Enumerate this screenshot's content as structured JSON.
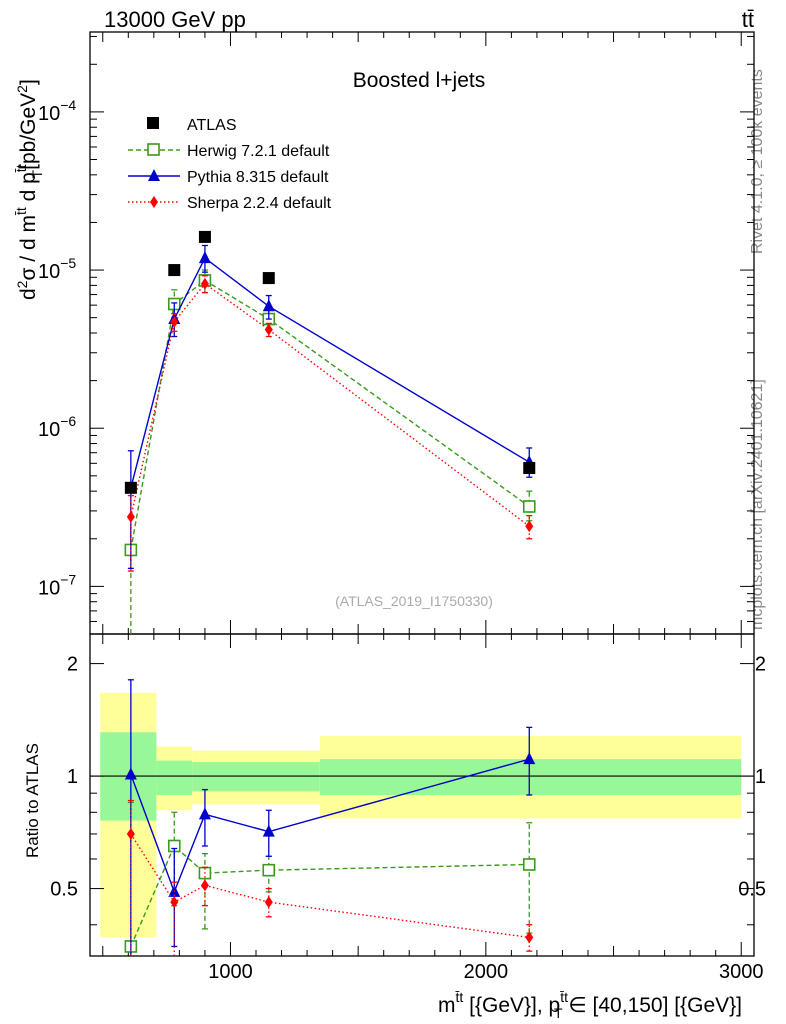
{
  "header": {
    "left": "13000 GeV pp",
    "right": "tt̄"
  },
  "side_labels": {
    "rivet": "Rivet 4.1.0, ≥ 100k events",
    "mcplots": "mcplots.cern.ch [arXiv:2401.10621]"
  },
  "colors": {
    "atlas": "#000000",
    "herwig": "#3a9a1a",
    "pythia": "#0000cc",
    "sherpa": "#ff0000",
    "band_inner": "#98f898",
    "band_outer": "#ffff99"
  },
  "chart_data": [
    {
      "type": "scatter",
      "title": "Boosted l+jets",
      "analysis_tag": "(ATLAS_2019_I1750330)",
      "yscale": "log",
      "ylabel": {
        "a": "d",
        "b": "2",
        "c": "σ / d m",
        "d": "t̄t",
        "e": " d p",
        "f": "t̄t",
        "g": "T",
        "h": "[pb/GeV",
        "i": "2",
        "j": "]"
      },
      "xlim": [
        450,
        3050
      ],
      "ylim": [
        5e-08,
        0.00032
      ],
      "ytick_labels": [
        {
          "value": 1e-07,
          "base": "10",
          "exp": "−7"
        },
        {
          "value": 1e-06,
          "base": "10",
          "exp": "−6"
        },
        {
          "value": 1e-05,
          "base": "10",
          "exp": "−5"
        },
        {
          "value": 0.0001,
          "base": "10",
          "exp": "−4"
        }
      ],
      "legend": [
        "ATLAS",
        "Herwig 7.2.1 default",
        "Pythia 8.315 default",
        "Sherpa 2.2.4 default"
      ],
      "legend_position": "top-left",
      "series": [
        {
          "name": "ATLAS",
          "style": "square",
          "x": [
            610,
            780,
            900,
            1150,
            2170
          ],
          "y": [
            4.2e-07,
            1e-05,
            1.62e-05,
            8.9e-06,
            5.6e-07
          ]
        },
        {
          "name": "Herwig 7.2.1 default",
          "style": "open-square-dashed",
          "x": [
            610,
            780,
            900,
            1150,
            2170
          ],
          "y": [
            1.7e-07,
            6.1e-06,
            8.6e-06,
            4.9e-06,
            3.2e-07
          ],
          "err_low": [
            1.7e-07,
            1.3e-06,
            1.4e-06,
            7e-07,
            6e-08
          ],
          "err_high": [
            2.5e-07,
            1.4e-06,
            1.4e-06,
            7e-07,
            8e-08
          ]
        },
        {
          "name": "Pythia 8.315 default",
          "style": "triangle-solid",
          "x": [
            610,
            780,
            900,
            1150,
            2170
          ],
          "y": [
            4.2e-07,
            4.9e-06,
            1.19e-05,
            5.9e-06,
            6.1e-07
          ],
          "err_low": [
            2.9e-07,
            1.1e-06,
            2.2e-06,
            1e-06,
            1.2e-07
          ],
          "err_high": [
            3e-07,
            1.3e-06,
            2.4e-06,
            1e-06,
            1.4e-07
          ]
        },
        {
          "name": "Sherpa 2.2.4 default",
          "style": "diamond-dotted",
          "x": [
            610,
            780,
            900,
            1150,
            2170
          ],
          "y": [
            2.75e-07,
            4.7e-06,
            8.2e-06,
            4.2e-06,
            2.4e-07
          ],
          "err_low": [
            1.5e-07,
            6e-07,
            1e-06,
            4e-07,
            4e-08
          ],
          "err_high": [
            1e-07,
            6e-07,
            1e-06,
            4e-07,
            4e-08
          ]
        }
      ]
    },
    {
      "type": "scatter",
      "ylabel": "Ratio to ATLAS",
      "xlabel": {
        "a": "m",
        "b": "t̄t",
        "c": " [{GeV}], p",
        "d": "t̄t",
        "e": "T",
        "f": " ∈ [40,150] [{GeV}]"
      },
      "xlim": [
        450,
        3050
      ],
      "ylim": [
        0.33,
        2.4
      ],
      "yscale": "log",
      "xtick_labels": [
        {
          "value": 1000,
          "label": "1000"
        },
        {
          "value": 2000,
          "label": "2000"
        },
        {
          "value": 3000,
          "label": "3000"
        }
      ],
      "ytick_labels": [
        {
          "value": 0.5,
          "label": "0.5"
        },
        {
          "value": 1,
          "label": "1"
        },
        {
          "value": 2,
          "label": "2"
        }
      ],
      "bands": [
        {
          "x0": 490,
          "x1": 710,
          "inner": [
            0.76,
            1.31
          ],
          "outer": [
            0.37,
            1.67
          ]
        },
        {
          "x0": 710,
          "x1": 850,
          "inner": [
            0.89,
            1.1
          ],
          "outer": [
            0.81,
            1.2
          ]
        },
        {
          "x0": 850,
          "x1": 1350,
          "inner": [
            0.91,
            1.09
          ],
          "outer": [
            0.84,
            1.17
          ]
        },
        {
          "x0": 1350,
          "x1": 3000,
          "inner": [
            0.89,
            1.11
          ],
          "outer": [
            0.77,
            1.28
          ]
        }
      ],
      "series": [
        {
          "name": "Herwig 7.2.1 default",
          "x": [
            610,
            780,
            900,
            1150,
            2170
          ],
          "y": [
            0.35,
            0.65,
            0.55,
            0.56,
            0.58
          ],
          "err_low": [
            0.12,
            0.2,
            0.16,
            0.07,
            0.2
          ],
          "err_high": [
            0.5,
            0.15,
            0.07,
            0.05,
            0.17
          ]
        },
        {
          "name": "Pythia 8.315 default",
          "x": [
            610,
            780,
            900,
            1150,
            2170
          ],
          "y": [
            1.01,
            0.49,
            0.79,
            0.71,
            1.11
          ],
          "err_low": [
            0.7,
            0.14,
            0.14,
            0.1,
            0.22
          ],
          "err_high": [
            0.8,
            0.15,
            0.13,
            0.1,
            0.24
          ]
        },
        {
          "name": "Sherpa 2.2.4 default",
          "x": [
            610,
            780,
            900,
            1150,
            2170
          ],
          "y": [
            0.7,
            0.46,
            0.51,
            0.46,
            0.37
          ],
          "err_low": [
            0.4,
            0.14,
            0.06,
            0.04,
            0.03
          ],
          "err_high": [
            0.16,
            0.06,
            0.06,
            0.04,
            0.03
          ]
        }
      ]
    }
  ]
}
